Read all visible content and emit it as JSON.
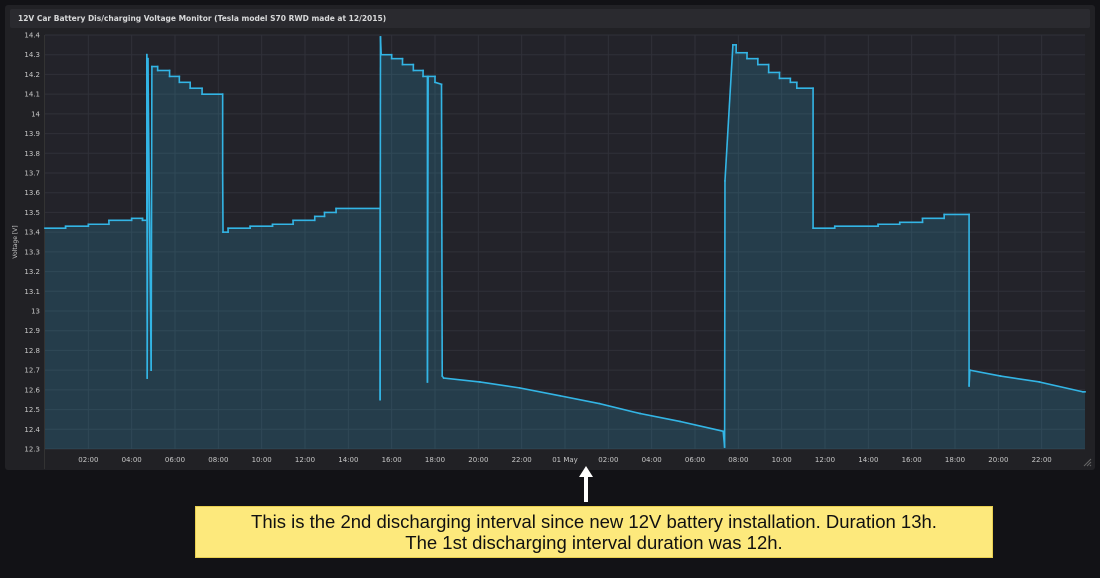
{
  "panel": {
    "title": "12V Car Battery Dis/charging Voltage Monitor (Tesla model S70 RWD made at 12/2015)"
  },
  "annotation": {
    "line1": "This is the 2nd discharging interval since new 12V battery installation. Duration 13h.",
    "line2": "The 1st discharging interval duration was 12h.",
    "background": "#fde97c"
  },
  "colors": {
    "series": "#33b5e5",
    "fill": "#2a3f50",
    "grid": "#303139",
    "background": "#212125"
  },
  "chart_data": {
    "type": "area",
    "title": "12V Car Battery Dis/charging Voltage Monitor (Tesla model S70 RWD made at 12/2015)",
    "xlabel": "",
    "ylabel": "Voltage [V]",
    "ylim": [
      12.3,
      14.4
    ],
    "xlim": [
      "30 Apr 00:00",
      "02 May 00:00"
    ],
    "grid": true,
    "legend": "none",
    "y_ticks": [
      "14.4",
      "14.3",
      "14.2",
      "14.1",
      "14",
      "13.9",
      "13.8",
      "13.7",
      "13.6",
      "13.5",
      "13.4",
      "13.3",
      "13.2",
      "13.1",
      "13",
      "12.9",
      "12.8",
      "12.7",
      "12.6",
      "12.5",
      "12.4",
      "12.3"
    ],
    "x_ticks": [
      "02:00",
      "04:00",
      "06:00",
      "08:00",
      "10:00",
      "12:00",
      "14:00",
      "16:00",
      "18:00",
      "20:00",
      "22:00",
      "01 May",
      "02:00",
      "04:00",
      "06:00",
      "08:00",
      "10:00",
      "12:00",
      "14:00",
      "16:00",
      "18:00",
      "20:00",
      "22:00"
    ],
    "series": [
      {
        "points": [
          [
            "30 Apr 00:00",
            13.42
          ],
          [
            "30 Apr 00:57",
            13.42
          ],
          [
            "30 Apr 00:57",
            13.43
          ],
          [
            "30 Apr 02:00",
            13.43
          ],
          [
            "30 Apr 02:00",
            13.44
          ],
          [
            "30 Apr 02:57",
            13.44
          ],
          [
            "30 Apr 02:57",
            13.46
          ],
          [
            "30 Apr 04:00",
            13.46
          ],
          [
            "30 Apr 04:00",
            13.47
          ],
          [
            "30 Apr 04:30",
            13.47
          ],
          [
            "30 Apr 04:30",
            13.46
          ],
          [
            "30 Apr 04:42",
            13.46
          ],
          [
            "30 Apr 04:42",
            14.3
          ],
          [
            "30 Apr 04:43",
            12.66
          ],
          [
            "30 Apr 04:45",
            14.28
          ],
          [
            "30 Apr 04:54",
            12.7
          ],
          [
            "30 Apr 04:56",
            14.24
          ],
          [
            "30 Apr 05:12",
            14.24
          ],
          [
            "30 Apr 05:12",
            14.22
          ],
          [
            "30 Apr 05:45",
            14.22
          ],
          [
            "30 Apr 05:45",
            14.19
          ],
          [
            "30 Apr 06:12",
            14.19
          ],
          [
            "30 Apr 06:12",
            14.16
          ],
          [
            "30 Apr 06:42",
            14.16
          ],
          [
            "30 Apr 06:42",
            14.13
          ],
          [
            "30 Apr 07:15",
            14.13
          ],
          [
            "30 Apr 07:15",
            14.1
          ],
          [
            "30 Apr 08:12",
            14.1
          ],
          [
            "30 Apr 08:12",
            13.7
          ],
          [
            "30 Apr 08:13",
            13.4
          ],
          [
            "30 Apr 08:27",
            13.4
          ],
          [
            "30 Apr 08:27",
            13.42
          ],
          [
            "30 Apr 09:28",
            13.42
          ],
          [
            "30 Apr 09:28",
            13.43
          ],
          [
            "30 Apr 10:30",
            13.43
          ],
          [
            "30 Apr 10:30",
            13.44
          ],
          [
            "30 Apr 11:27",
            13.44
          ],
          [
            "30 Apr 11:27",
            13.46
          ],
          [
            "30 Apr 12:27",
            13.46
          ],
          [
            "30 Apr 12:27",
            13.48
          ],
          [
            "30 Apr 12:54",
            13.48
          ],
          [
            "30 Apr 12:54",
            13.5
          ],
          [
            "30 Apr 13:26",
            13.5
          ],
          [
            "30 Apr 13:26",
            13.52
          ],
          [
            "30 Apr 15:28",
            13.52
          ],
          [
            "30 Apr 15:28",
            12.55
          ],
          [
            "30 Apr 15:29",
            14.39
          ],
          [
            "30 Apr 15:31",
            14.3
          ],
          [
            "30 Apr 16:00",
            14.3
          ],
          [
            "30 Apr 16:00",
            14.28
          ],
          [
            "30 Apr 16:30",
            14.28
          ],
          [
            "30 Apr 16:30",
            14.25
          ],
          [
            "30 Apr 17:00",
            14.25
          ],
          [
            "30 Apr 17:00",
            14.22
          ],
          [
            "30 Apr 17:27",
            14.22
          ],
          [
            "30 Apr 17:27",
            14.19
          ],
          [
            "30 Apr 17:39",
            14.19
          ],
          [
            "30 Apr 17:39",
            12.64
          ],
          [
            "30 Apr 17:41",
            14.19
          ],
          [
            "30 Apr 18:00",
            14.19
          ],
          [
            "30 Apr 18:00",
            14.16
          ],
          [
            "30 Apr 18:18",
            14.15
          ],
          [
            "30 Apr 18:20",
            12.67
          ],
          [
            "30 Apr 18:24",
            12.66
          ],
          [
            "30 Apr 20:04",
            12.64
          ],
          [
            "30 Apr 21:54",
            12.61
          ],
          [
            "30 Apr 23:46",
            12.57
          ],
          [
            "01 May 01:36",
            12.53
          ],
          [
            "01 May 03:28",
            12.48
          ],
          [
            "01 May 05:18",
            12.44
          ],
          [
            "01 May 07:18",
            12.39
          ],
          [
            "01 May 07:22",
            12.31
          ],
          [
            "01 May 07:23",
            13.66
          ],
          [
            "01 May 07:45",
            14.35
          ],
          [
            "01 May 07:54",
            14.35
          ],
          [
            "01 May 07:54",
            14.31
          ],
          [
            "01 May 08:24",
            14.31
          ],
          [
            "01 May 08:24",
            14.28
          ],
          [
            "01 May 08:54",
            14.28
          ],
          [
            "01 May 08:54",
            14.25
          ],
          [
            "01 May 09:24",
            14.25
          ],
          [
            "01 May 09:24",
            14.21
          ],
          [
            "01 May 09:54",
            14.21
          ],
          [
            "01 May 09:54",
            14.18
          ],
          [
            "01 May 10:24",
            14.18
          ],
          [
            "01 May 10:24",
            14.16
          ],
          [
            "01 May 10:42",
            14.16
          ],
          [
            "01 May 10:42",
            14.13
          ],
          [
            "01 May 11:27",
            14.13
          ],
          [
            "01 May 11:27",
            13.42
          ],
          [
            "01 May 12:27",
            13.42
          ],
          [
            "01 May 12:27",
            13.43
          ],
          [
            "01 May 14:27",
            13.43
          ],
          [
            "01 May 14:27",
            13.44
          ],
          [
            "01 May 15:27",
            13.44
          ],
          [
            "01 May 15:27",
            13.45
          ],
          [
            "01 May 16:30",
            13.45
          ],
          [
            "01 May 16:30",
            13.47
          ],
          [
            "01 May 17:30",
            13.47
          ],
          [
            "01 May 17:30",
            13.49
          ],
          [
            "01 May 18:39",
            13.49
          ],
          [
            "01 May 18:39",
            12.62
          ],
          [
            "01 May 18:41",
            12.7
          ],
          [
            "01 May 20:06",
            12.67
          ],
          [
            "01 May 21:54",
            12.64
          ],
          [
            "01 May 23:54",
            12.59
          ],
          [
            "02 May 00:00",
            12.59
          ]
        ]
      }
    ]
  }
}
